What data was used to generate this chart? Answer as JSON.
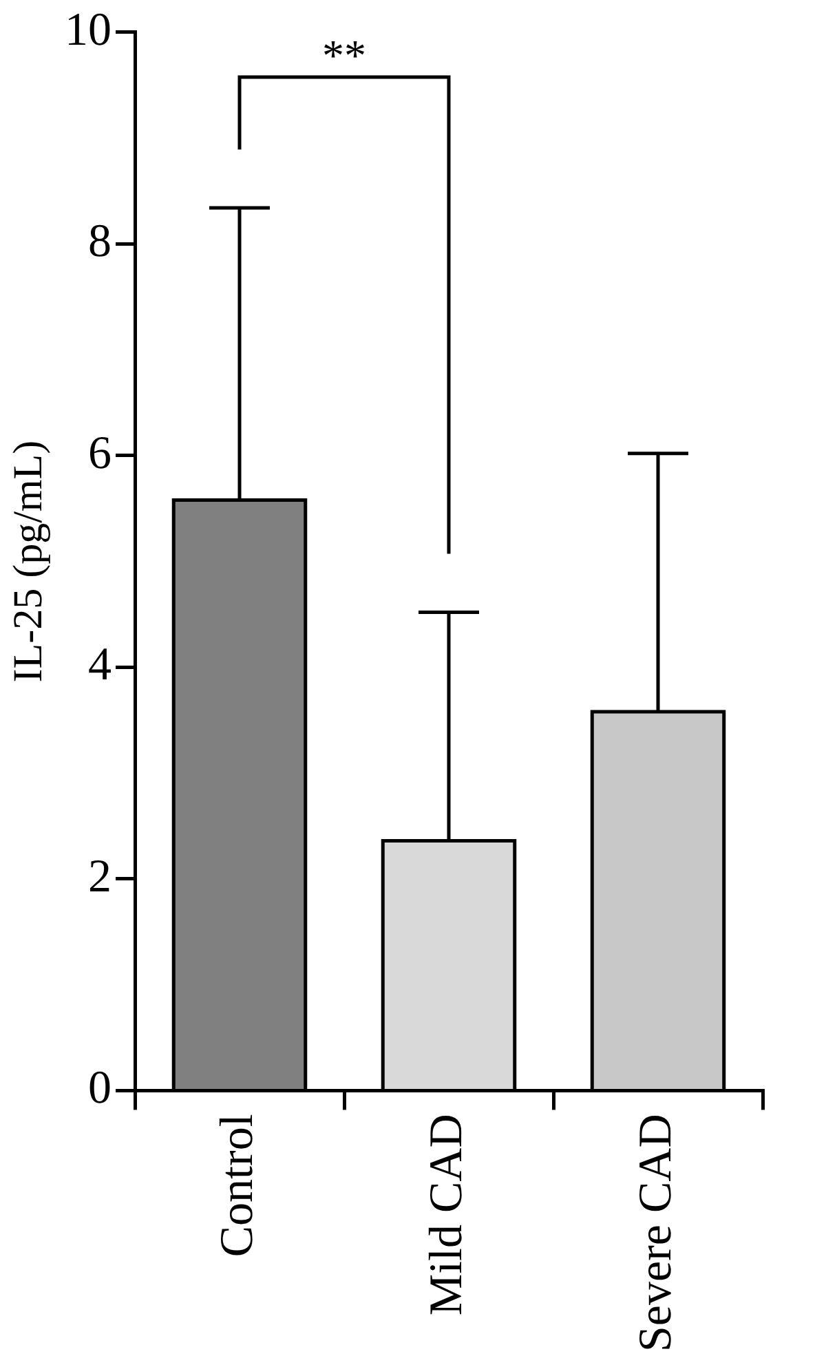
{
  "chart_data": {
    "type": "bar",
    "ylabel": "IL-25 (pg/mL)",
    "categories": [
      "Control",
      "Mild CAD",
      "Severe CAD"
    ],
    "values": [
      5.58,
      2.36,
      3.58
    ],
    "colors": [
      "#808080",
      "#d9d9d9",
      "#c8c8c8"
    ],
    "errors": [
      [
        5.58,
        8.34
      ],
      [
        2.36,
        4.52
      ],
      [
        3.58,
        6.02
      ]
    ],
    "ylim": [
      0,
      10
    ],
    "yticks": [
      0,
      2,
      4,
      6,
      8,
      10
    ],
    "grid": false,
    "legend": false,
    "annotations": [
      "**"
    ]
  }
}
